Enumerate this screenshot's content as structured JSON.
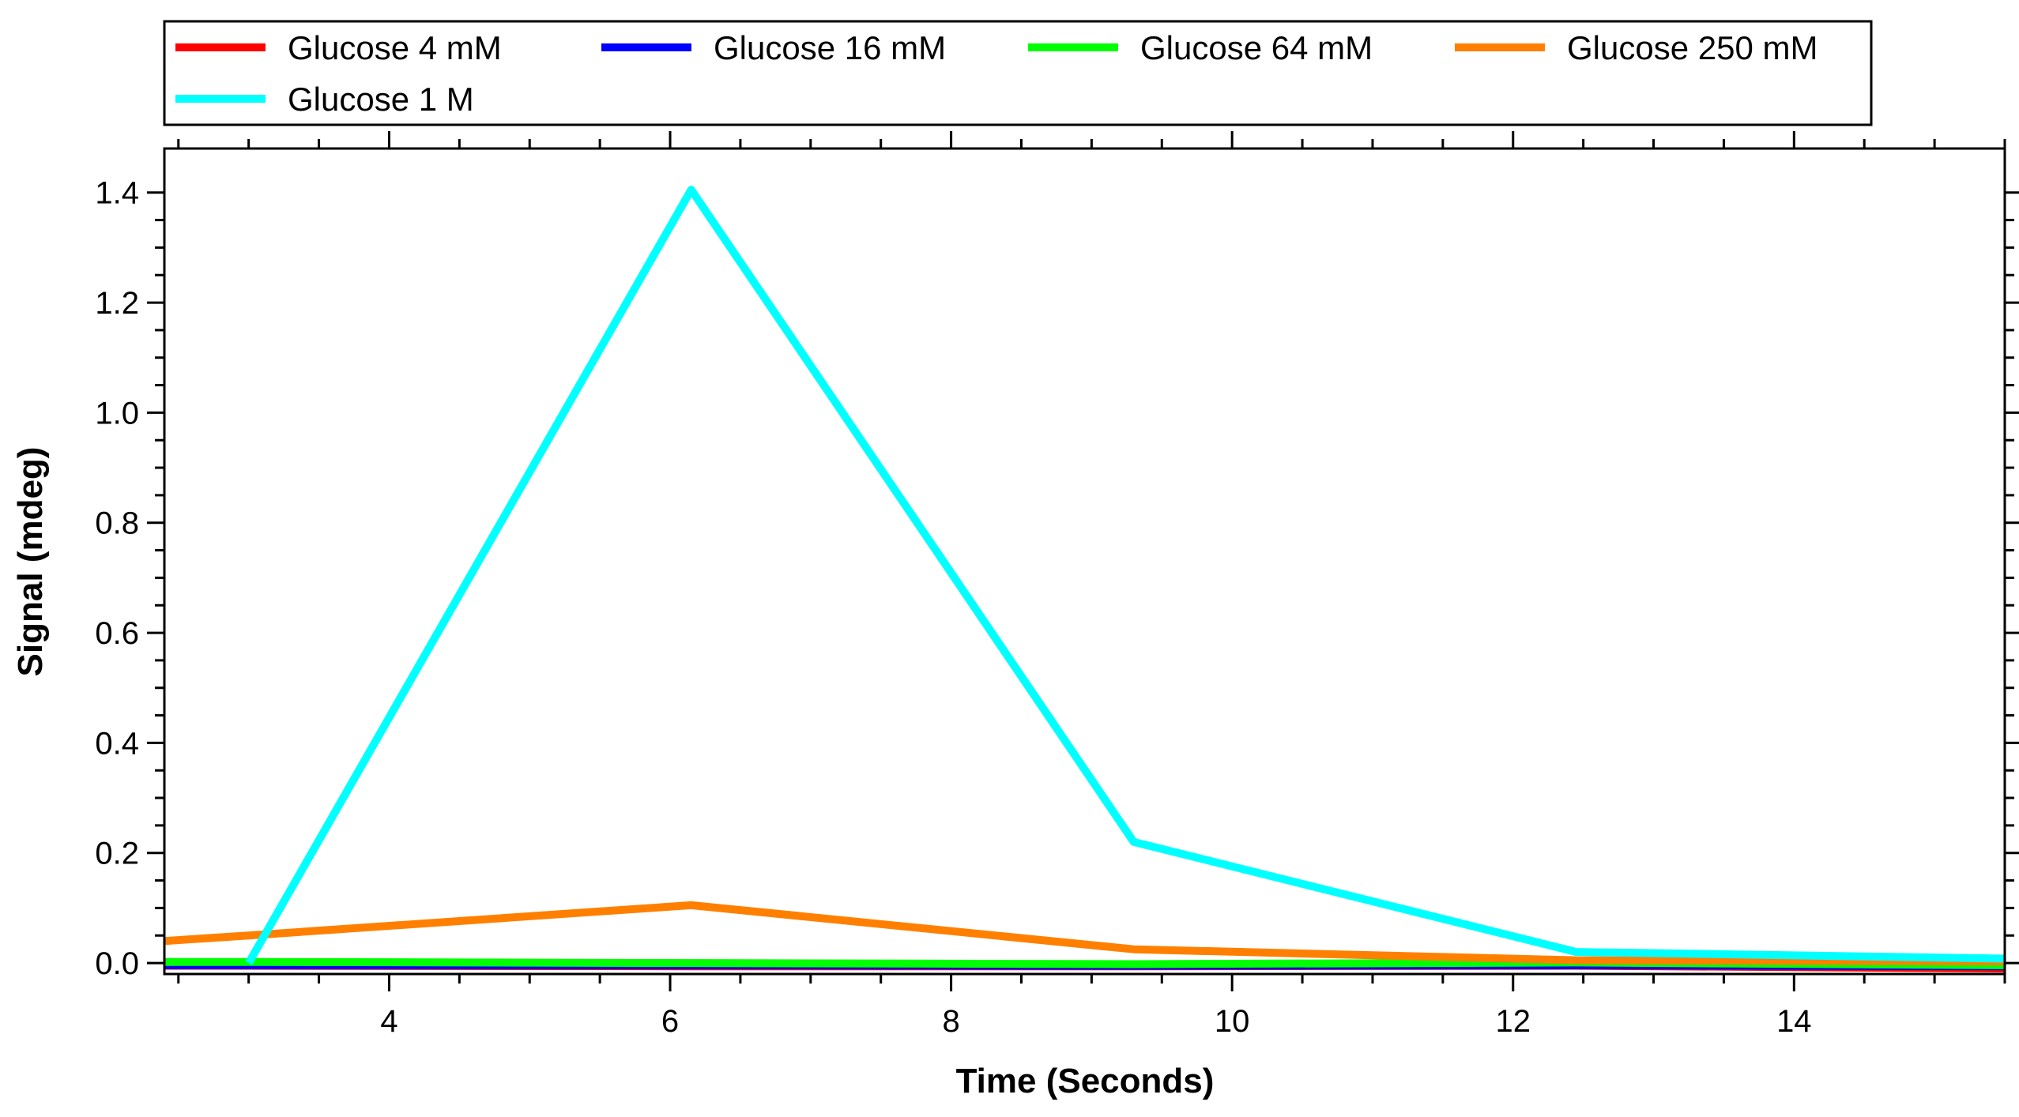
{
  "chart_data": {
    "type": "line",
    "title": "",
    "xlabel": "Time (Seconds)",
    "ylabel": "Signal (mdeg)",
    "xlim": [
      2.4,
      15.5
    ],
    "ylim": [
      -0.02,
      1.48
    ],
    "x_ticks": [
      4,
      6,
      8,
      10,
      12,
      14
    ],
    "y_ticks": [
      0.0,
      0.2,
      0.4,
      0.6,
      0.8,
      1.0,
      1.2,
      1.4
    ],
    "x_tick_labels": [
      "4",
      "6",
      "8",
      "10",
      "12",
      "14"
    ],
    "y_tick_labels": [
      "0.0",
      "0.2",
      "0.4",
      "0.6",
      "0.8",
      "1.0",
      "1.2",
      "1.4"
    ],
    "grid": false,
    "legend_position": "top",
    "x": [
      2.4,
      3.0,
      6.15,
      9.3,
      12.45,
      15.5
    ],
    "series": [
      {
        "name": "Glucose 4 mM",
        "color": "#ff0000",
        "values": [
          -0.005,
          -0.005,
          -0.006,
          -0.006,
          -0.005,
          -0.01
        ]
      },
      {
        "name": "Glucose 16 mM",
        "color": "#0000ff",
        "values": [
          -0.004,
          -0.004,
          -0.004,
          -0.005,
          -0.004,
          -0.006
        ]
      },
      {
        "name": "Glucose 64 mM",
        "color": "#00ff00",
        "values": [
          0.002,
          0.002,
          0.0,
          -0.002,
          0.001,
          -0.004
        ]
      },
      {
        "name": "Glucose 250 mM",
        "color": "#ff8000",
        "values": [
          0.04,
          0.05,
          0.105,
          0.025,
          0.005,
          0.003
        ]
      },
      {
        "name": "Glucose 1 M",
        "color": "#00ffff",
        "values": [
          null,
          0.0,
          1.405,
          0.22,
          0.02,
          0.008
        ]
      }
    ]
  }
}
